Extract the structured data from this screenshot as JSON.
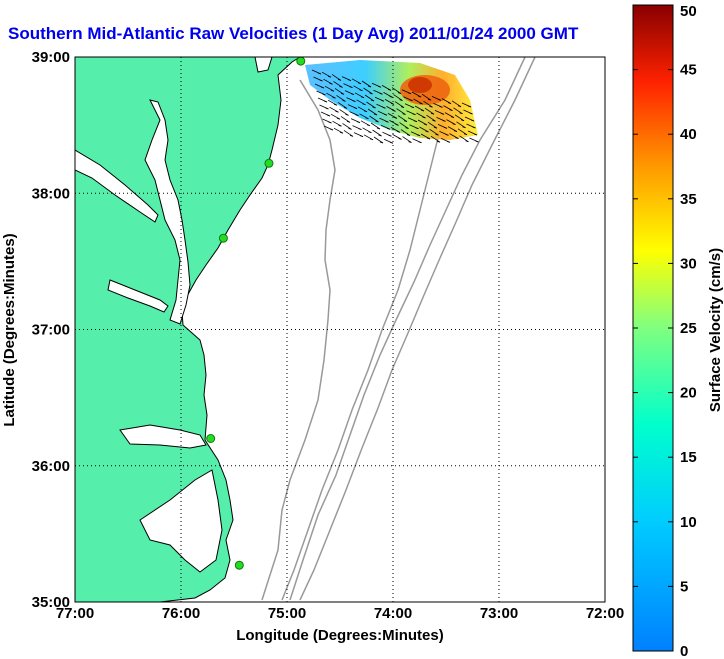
{
  "title": "Southern Mid-Atlantic Raw Velocities (1 Day Avg) 2011/01/24 2000 GMT",
  "colors": {
    "title": "#0000ee",
    "land": "#55eeaa",
    "coast": "#000000",
    "bathymetry": "#999999",
    "station": "#22dd22",
    "grid": "#000000"
  },
  "map": {
    "xlabel": "Longitude (Degrees:Minutes)",
    "ylabel": "Latitude (Degrees:Minutes)",
    "xlim": [
      -77,
      -72
    ],
    "ylim": [
      35,
      39
    ],
    "x_ticks": [
      "77:00",
      "76:00",
      "75:00",
      "74:00",
      "73:00",
      "72:00"
    ],
    "y_ticks": [
      "35:00",
      "36:00",
      "37:00",
      "38:00",
      "39:00"
    ],
    "grid": "dotted"
  },
  "colorbar": {
    "label": "Surface Velocity (cm/s)",
    "range": [
      0,
      50
    ],
    "ticks": [
      "0",
      "5",
      "10",
      "15",
      "20",
      "25",
      "30",
      "35",
      "40",
      "45",
      "50"
    ]
  },
  "stations": [
    {
      "lon": -74.87,
      "lat": 38.97
    },
    {
      "lon": -75.17,
      "lat": 38.22
    },
    {
      "lon": -75.6,
      "lat": 37.67
    },
    {
      "lon": -75.72,
      "lat": 36.2
    },
    {
      "lon": -75.45,
      "lat": 35.27
    }
  ]
}
